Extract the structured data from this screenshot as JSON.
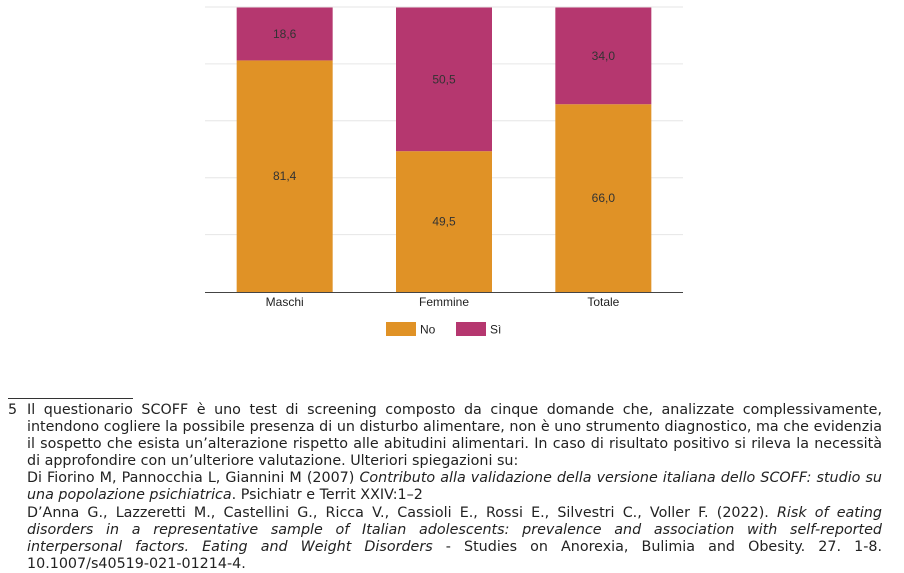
{
  "chart_data": {
    "type": "bar",
    "stacked": true,
    "categories": [
      "Maschi",
      "Femmine",
      "Totale"
    ],
    "series": [
      {
        "name": "No",
        "values": [
          81.4,
          49.5,
          66.0
        ],
        "labels": [
          "81,4",
          "49,5",
          "66,0"
        ],
        "color": "#E09226"
      },
      {
        "name": "Sì",
        "values": [
          18.6,
          50.5,
          34.0
        ],
        "labels": [
          "18,6",
          "50,5",
          "34,0"
        ],
        "color": "#B5376F"
      }
    ],
    "ylim": [
      0,
      100
    ],
    "grid": true,
    "legend_position": "bottom"
  },
  "footnote": {
    "number": "5",
    "text": "Il questionario SCOFF è uno test di screening composto da cinque domande che, analizzate complessivamente, intendono cogliere la possibile presenza di un disturbo alimentare, non è uno strumento diagnostico, ma che evidenzia il sospetto che esista un’alterazione rispetto alle abitudini alimentari. In caso di risultato positivo si rileva la necessità di approfondire con un’ulteriore valutazione. Ulteriori spiegazioni su:",
    "ref1": {
      "authors": "Di Fiorino M, Pannocchia L, Giannini M (2007) ",
      "title": "Contributo alla validazione della versione italiana dello SCOFF: studio su una popolazione psichiatrica",
      "rest": ". Psichiatr e Territ XXIV:1–2"
    },
    "ref2": {
      "authors": "D’Anna G., Lazzeretti M., Castellini G., Ricca V., Cassioli E., Rossi E., Silvestri C., Voller F. (2022). ",
      "title": "Risk of eating disorders in a representative sample of Italian adolescents: prevalence and association with self-reported interpersonal factors. Eating and Weight Disorders",
      "rest": " - Studies on Anorexia, Bulimia and Obesity. 27. 1-8. 10.1007/s40519-021-01214-4."
    }
  }
}
